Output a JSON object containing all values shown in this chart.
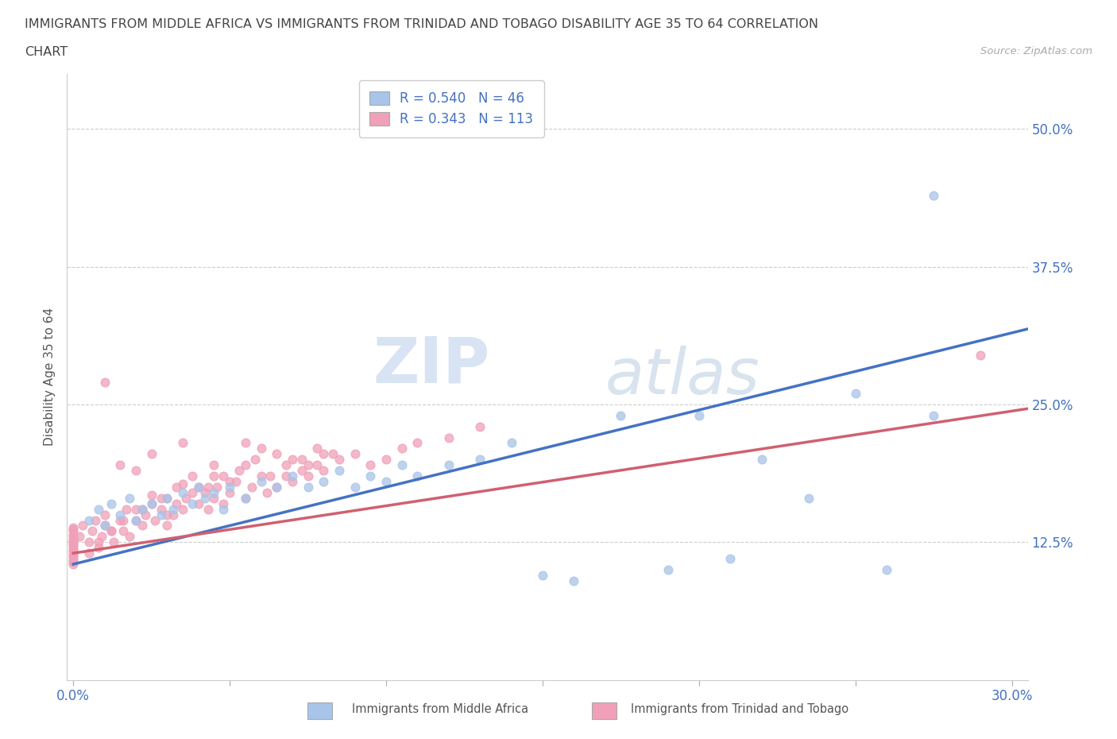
{
  "title_line1": "IMMIGRANTS FROM MIDDLE AFRICA VS IMMIGRANTS FROM TRINIDAD AND TOBAGO DISABILITY AGE 35 TO 64 CORRELATION",
  "title_line2": "CHART",
  "source_text": "Source: ZipAtlas.com",
  "ylabel": "Disability Age 35 to 64",
  "xlim": [
    0.0,
    0.3
  ],
  "ylim": [
    0.0,
    0.55
  ],
  "xticks": [
    0.0,
    0.05,
    0.1,
    0.15,
    0.2,
    0.25,
    0.3
  ],
  "xtick_labels": [
    "0.0%",
    "",
    "",
    "",
    "",
    "",
    "30.0%"
  ],
  "ytick_positions": [
    0.125,
    0.25,
    0.375,
    0.5
  ],
  "ytick_labels": [
    "12.5%",
    "25.0%",
    "37.5%",
    "50.0%"
  ],
  "legend_r1": "R = 0.540",
  "legend_n1": "N = 46",
  "legend_r2": "R = 0.343",
  "legend_n2": "N = 113",
  "color_blue": "#a8c4e8",
  "color_pink": "#f0a0b8",
  "trend_color_blue": "#4472c4",
  "trend_color_pink": "#d06070",
  "watermark_zip": "ZIP",
  "watermark_atlas": "atlas",
  "legend_label1": "Immigrants from Middle Africa",
  "legend_label2": "Immigrants from Trinidad and Tobago",
  "blue_x": [
    0.005,
    0.008,
    0.01,
    0.012,
    0.015,
    0.018,
    0.02,
    0.022,
    0.025,
    0.028,
    0.03,
    0.032,
    0.035,
    0.038,
    0.04,
    0.042,
    0.045,
    0.048,
    0.05,
    0.055,
    0.06,
    0.065,
    0.07,
    0.075,
    0.08,
    0.085,
    0.09,
    0.095,
    0.1,
    0.105,
    0.11,
    0.12,
    0.13,
    0.14,
    0.15,
    0.16,
    0.175,
    0.19,
    0.2,
    0.21,
    0.22,
    0.235,
    0.25,
    0.26,
    0.275,
    0.275
  ],
  "blue_y": [
    0.145,
    0.155,
    0.14,
    0.16,
    0.15,
    0.165,
    0.145,
    0.155,
    0.16,
    0.15,
    0.165,
    0.155,
    0.17,
    0.16,
    0.175,
    0.165,
    0.17,
    0.155,
    0.175,
    0.165,
    0.18,
    0.175,
    0.185,
    0.175,
    0.18,
    0.19,
    0.175,
    0.185,
    0.18,
    0.195,
    0.185,
    0.195,
    0.2,
    0.215,
    0.095,
    0.09,
    0.24,
    0.1,
    0.24,
    0.11,
    0.2,
    0.165,
    0.26,
    0.1,
    0.24,
    0.44
  ],
  "pink_x": [
    0.0,
    0.0,
    0.0,
    0.0,
    0.0,
    0.0,
    0.0,
    0.0,
    0.0,
    0.0,
    0.0,
    0.0,
    0.0,
    0.0,
    0.0,
    0.0,
    0.0,
    0.0,
    0.0,
    0.0,
    0.002,
    0.003,
    0.005,
    0.006,
    0.007,
    0.008,
    0.009,
    0.01,
    0.01,
    0.012,
    0.013,
    0.015,
    0.016,
    0.017,
    0.018,
    0.02,
    0.02,
    0.022,
    0.023,
    0.025,
    0.026,
    0.028,
    0.03,
    0.03,
    0.032,
    0.033,
    0.035,
    0.036,
    0.038,
    0.04,
    0.042,
    0.043,
    0.045,
    0.046,
    0.048,
    0.05,
    0.052,
    0.055,
    0.057,
    0.06,
    0.062,
    0.065,
    0.068,
    0.07,
    0.073,
    0.075,
    0.078,
    0.08,
    0.085,
    0.09,
    0.095,
    0.1,
    0.105,
    0.11,
    0.12,
    0.13,
    0.02,
    0.04,
    0.06,
    0.08,
    0.025,
    0.035,
    0.045,
    0.055,
    0.065,
    0.075,
    0.03,
    0.05,
    0.07,
    0.01,
    0.015,
    0.025,
    0.035,
    0.045,
    0.055,
    0.005,
    0.008,
    0.012,
    0.016,
    0.022,
    0.028,
    0.033,
    0.038,
    0.043,
    0.048,
    0.053,
    0.058,
    0.063,
    0.068,
    0.073,
    0.078,
    0.083,
    0.29
  ],
  "pink_y": [
    0.11,
    0.12,
    0.13,
    0.105,
    0.115,
    0.125,
    0.135,
    0.108,
    0.118,
    0.128,
    0.138,
    0.112,
    0.122,
    0.132,
    0.107,
    0.117,
    0.127,
    0.137,
    0.113,
    0.123,
    0.13,
    0.14,
    0.125,
    0.135,
    0.145,
    0.12,
    0.13,
    0.14,
    0.15,
    0.135,
    0.125,
    0.145,
    0.135,
    0.155,
    0.13,
    0.145,
    0.155,
    0.14,
    0.15,
    0.16,
    0.145,
    0.155,
    0.165,
    0.14,
    0.15,
    0.16,
    0.155,
    0.165,
    0.17,
    0.16,
    0.17,
    0.155,
    0.165,
    0.175,
    0.16,
    0.17,
    0.18,
    0.165,
    0.175,
    0.185,
    0.17,
    0.175,
    0.185,
    0.18,
    0.19,
    0.185,
    0.195,
    0.19,
    0.2,
    0.205,
    0.195,
    0.2,
    0.21,
    0.215,
    0.22,
    0.23,
    0.19,
    0.175,
    0.21,
    0.205,
    0.168,
    0.178,
    0.185,
    0.195,
    0.205,
    0.195,
    0.15,
    0.18,
    0.2,
    0.27,
    0.195,
    0.205,
    0.215,
    0.195,
    0.215,
    0.115,
    0.125,
    0.135,
    0.145,
    0.155,
    0.165,
    0.175,
    0.185,
    0.175,
    0.185,
    0.19,
    0.2,
    0.185,
    0.195,
    0.2,
    0.21,
    0.205,
    0.295
  ],
  "blue_trend_intercept": 0.105,
  "blue_trend_slope": 0.7,
  "pink_trend_intercept": 0.115,
  "pink_trend_slope": 0.43
}
